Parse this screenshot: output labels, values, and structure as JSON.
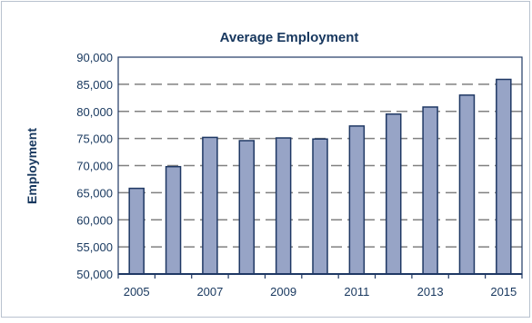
{
  "chart_data": {
    "type": "bar",
    "title": "Average Employment",
    "xlabel": "",
    "ylabel": "Employment",
    "ylim": [
      50000,
      90000
    ],
    "yticks": [
      "50,000",
      "55,000",
      "60,000",
      "65,000",
      "70,000",
      "75,000",
      "80,000",
      "85,000",
      "90,000"
    ],
    "categories": [
      "2005",
      "2006",
      "2007",
      "2008",
      "2009",
      "2010",
      "2011",
      "2012",
      "2013",
      "2014",
      "2015"
    ],
    "xtick_labels": [
      "2005",
      "2007",
      "2009",
      "2011",
      "2013",
      "2015"
    ],
    "values": [
      65800,
      69800,
      75200,
      74600,
      75100,
      74900,
      77300,
      79500,
      80800,
      83000,
      85900
    ],
    "grid": "horizontal dashed",
    "colors": {
      "bar_fill": "#97a4c6",
      "bar_stroke": "#1f3864",
      "grid": "#808080",
      "axis": "#1f3864",
      "text": "#17375e"
    }
  }
}
